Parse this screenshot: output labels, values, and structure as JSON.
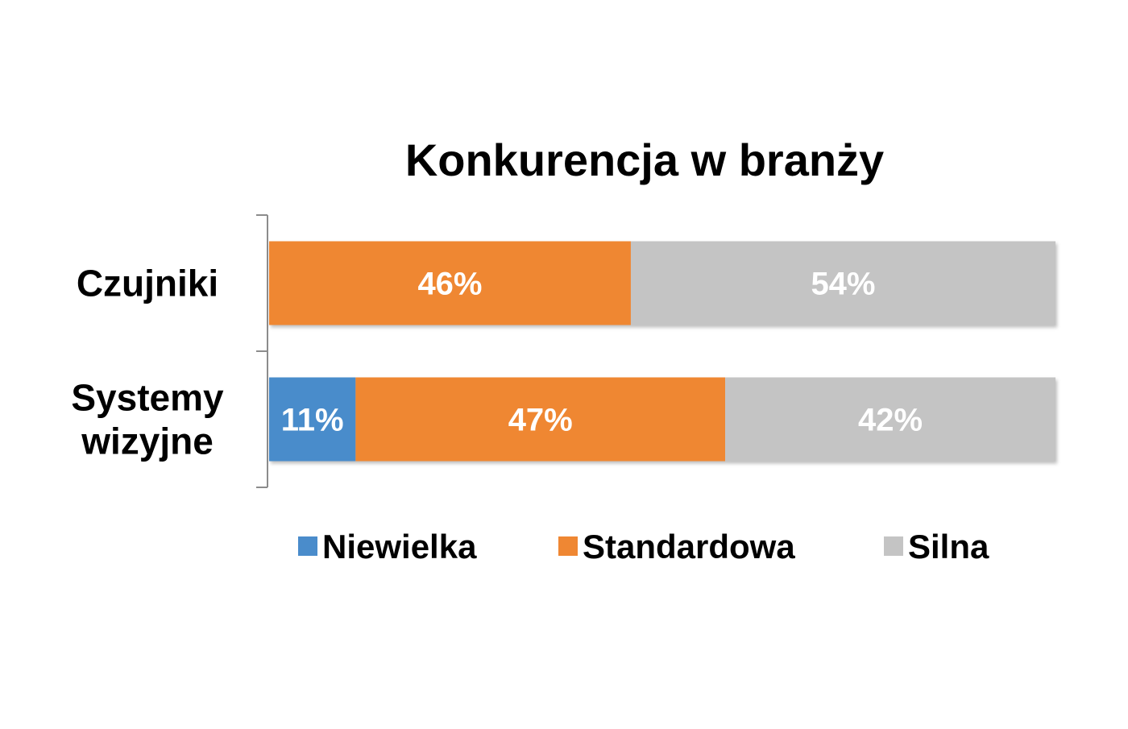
{
  "chart_data": {
    "type": "bar",
    "orientation": "horizontal",
    "stacked": true,
    "title": "Konkurencja w branży",
    "xlabel": "",
    "ylabel": "",
    "categories": [
      "Czujniki",
      "Systemy wizyjne"
    ],
    "category_lines": [
      [
        "Czujniki"
      ],
      [
        "Systemy",
        "wizyjne"
      ]
    ],
    "series": [
      {
        "name": "Niewielka",
        "values": [
          0,
          11
        ],
        "labels": [
          "",
          "11%"
        ],
        "color": "#4a8ccb"
      },
      {
        "name": "Standardowa",
        "values": [
          46,
          47
        ],
        "labels": [
          "46%",
          "47%"
        ],
        "color": "#ef8733"
      },
      {
        "name": "Silna",
        "values": [
          54,
          42
        ],
        "labels": [
          "54%",
          "42%"
        ],
        "color": "#c4c4c4"
      }
    ],
    "xlim": [
      0,
      100
    ],
    "value_format": "percent",
    "gridlines": false,
    "legend": "bottom",
    "data_label_color": "#ffffff",
    "text_color": "#000000",
    "axis_color": "#8c8c8c"
  }
}
